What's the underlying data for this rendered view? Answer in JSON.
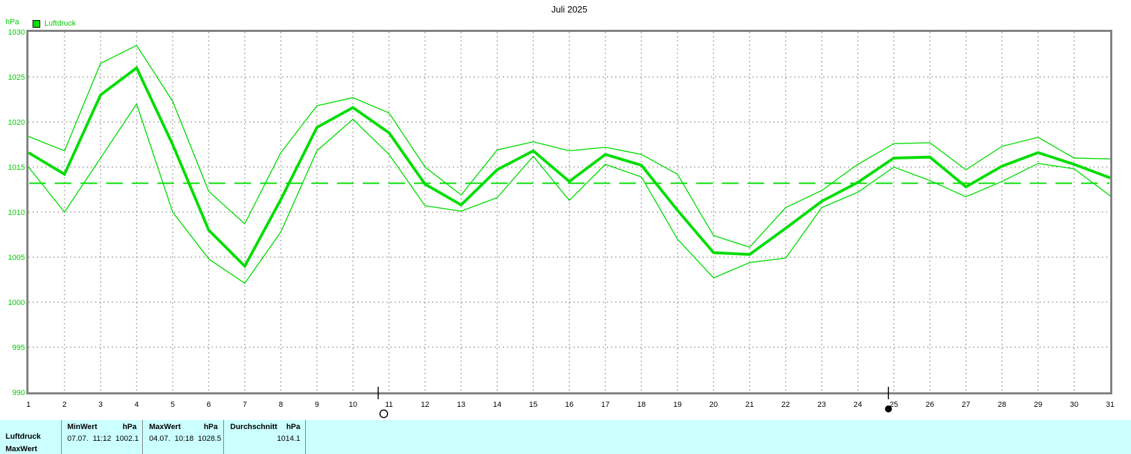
{
  "title": "Juli 2025",
  "y_axis_unit": "hPa",
  "legend": {
    "label": "Luftdruck"
  },
  "colors": {
    "line_green": "#00dd00",
    "text_green": "#00cc00",
    "grid_gray": "#808080",
    "border_gray": "#808080",
    "table_bg": "#ccffff",
    "axis_text": "#000000"
  },
  "chart_data": {
    "type": "line",
    "title": "Juli 2025",
    "ylabel": "hPa",
    "ylim": [
      990,
      1030
    ],
    "yticks": [
      1030,
      1025,
      1020,
      1015,
      1010,
      1005,
      1000,
      995,
      990
    ],
    "grid": true,
    "reference_line": 1013.2,
    "days": [
      1,
      2,
      3,
      4,
      5,
      6,
      7,
      8,
      9,
      10,
      11,
      12,
      13,
      14,
      15,
      16,
      17,
      18,
      19,
      20,
      21,
      22,
      23,
      24,
      25,
      26,
      27,
      28,
      29,
      30,
      31
    ],
    "series": [
      {
        "name": "max",
        "style": "thin",
        "values": [
          1018.4,
          1016.8,
          1026.5,
          1028.5,
          1022.3,
          1012.3,
          1008.7,
          1016.6,
          1021.8,
          1022.7,
          1021.0,
          1015.0,
          1011.9,
          1016.9,
          1017.8,
          1016.8,
          1017.2,
          1016.4,
          1014.2,
          1007.4,
          1006.1,
          1010.5,
          1012.4,
          1015.3,
          1017.6,
          1017.7,
          1014.7,
          1017.3,
          1018.3,
          1016.0,
          1015.9
        ]
      },
      {
        "name": "mean",
        "style": "thick",
        "values": [
          1016.6,
          1014.2,
          1023.0,
          1026.0,
          1017.5,
          1008.0,
          1004.0,
          1011.4,
          1019.4,
          1021.6,
          1018.8,
          1013.1,
          1010.8,
          1014.7,
          1016.8,
          1013.4,
          1016.4,
          1015.2,
          1010.2,
          1005.5,
          1005.3,
          1008.2,
          1011.2,
          1013.3,
          1016.0,
          1016.1,
          1012.8,
          1015.1,
          1016.6,
          1015.3,
          1013.8
        ]
      },
      {
        "name": "min",
        "style": "thin",
        "values": [
          1015.0,
          1010.0,
          1016.0,
          1022.0,
          1010.0,
          1004.8,
          1002.1,
          1007.8,
          1016.8,
          1020.3,
          1016.4,
          1010.7,
          1010.1,
          1011.6,
          1016.2,
          1011.3,
          1015.3,
          1013.9,
          1007.0,
          1002.7,
          1004.4,
          1004.9,
          1010.5,
          1012.2,
          1015.0,
          1013.5,
          1011.7,
          1013.4,
          1015.4,
          1014.8,
          1011.8
        ]
      }
    ],
    "moon_markers": [
      {
        "phase": "full-moon",
        "symbol": "○",
        "x_day": 10.7
      },
      {
        "phase": "new-moon",
        "symbol": "●",
        "x_day": 24.85
      }
    ]
  },
  "summary_table": {
    "row_label": "Luftdruck",
    "second_row_label": "MaxWert",
    "columns": [
      {
        "title": "MinWert",
        "unit": "hPa",
        "value": "07.07.  11:12  1002.1"
      },
      {
        "title": "MaxWert",
        "unit": "hPa",
        "value": "04.07.  10:18  1028.5"
      },
      {
        "title": "Durchschnitt",
        "unit": "hPa",
        "value": "1014.1"
      }
    ]
  }
}
